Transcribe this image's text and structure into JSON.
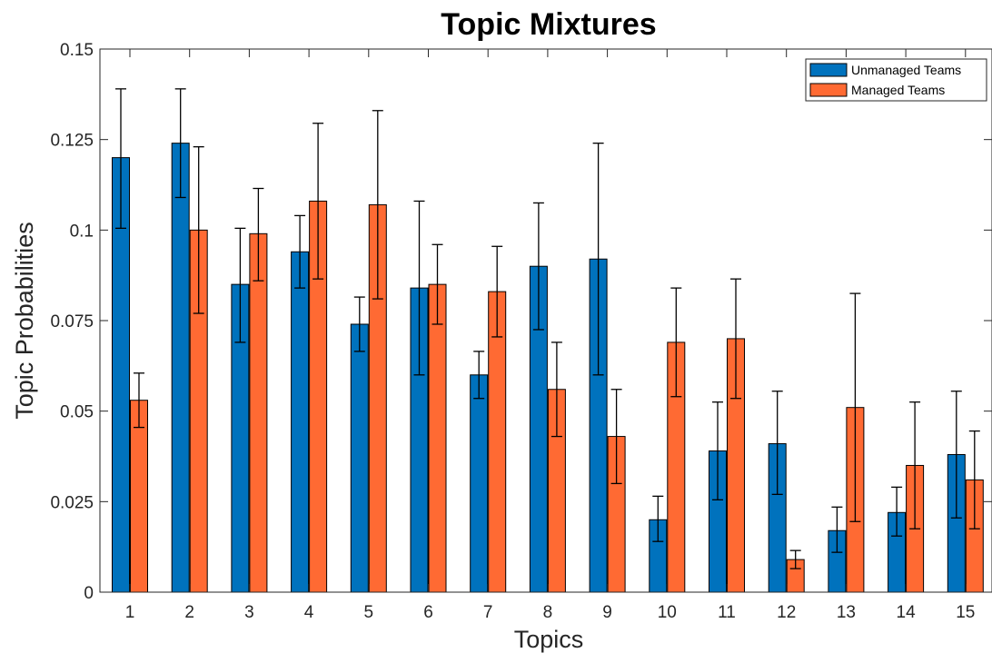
{
  "chart_data": {
    "type": "bar",
    "title": "Topic Mixtures",
    "xlabel": "Topics",
    "ylabel": "Topic Probabilities",
    "categories": [
      "1",
      "2",
      "3",
      "4",
      "5",
      "6",
      "7",
      "8",
      "9",
      "10",
      "11",
      "12",
      "13",
      "14",
      "15"
    ],
    "ylim": [
      0,
      0.15
    ],
    "yticks": [
      0,
      0.025,
      0.05,
      0.075,
      0.1,
      0.125,
      0.15
    ],
    "ytick_labels": [
      "0",
      "0.025",
      "0.05",
      "0.075",
      "0.1",
      "0.125",
      "0.15"
    ],
    "grid": false,
    "legend_position": "top-right",
    "series": [
      {
        "name": "Unmanaged Teams",
        "color": "#0072BD",
        "values": [
          0.12,
          0.124,
          0.085,
          0.094,
          0.074,
          0.084,
          0.06,
          0.09,
          0.092,
          0.02,
          0.039,
          0.041,
          0.017,
          0.022,
          0.038
        ],
        "err_low": [
          0.1005,
          0.109,
          0.069,
          0.084,
          0.0665,
          0.06,
          0.0535,
          0.0725,
          0.06,
          0.014,
          0.0255,
          0.027,
          0.011,
          0.0155,
          0.0205
        ],
        "err_high": [
          0.139,
          0.139,
          0.1005,
          0.104,
          0.0815,
          0.108,
          0.0665,
          0.1075,
          0.124,
          0.0265,
          0.0525,
          0.0555,
          0.0235,
          0.029,
          0.0555
        ]
      },
      {
        "name": "Managed Teams",
        "color": "#FF6A33",
        "values": [
          0.053,
          0.1,
          0.099,
          0.108,
          0.107,
          0.085,
          0.083,
          0.056,
          0.043,
          0.069,
          0.07,
          0.009,
          0.051,
          0.035,
          0.031
        ],
        "err_low": [
          0.0455,
          0.077,
          0.086,
          0.0865,
          0.081,
          0.074,
          0.0705,
          0.043,
          0.03,
          0.054,
          0.0535,
          0.0065,
          0.0195,
          0.0175,
          0.0175
        ],
        "err_high": [
          0.0605,
          0.123,
          0.1115,
          0.1295,
          0.133,
          0.096,
          0.0955,
          0.069,
          0.056,
          0.084,
          0.0865,
          0.0115,
          0.0825,
          0.0525,
          0.0445
        ]
      }
    ]
  }
}
